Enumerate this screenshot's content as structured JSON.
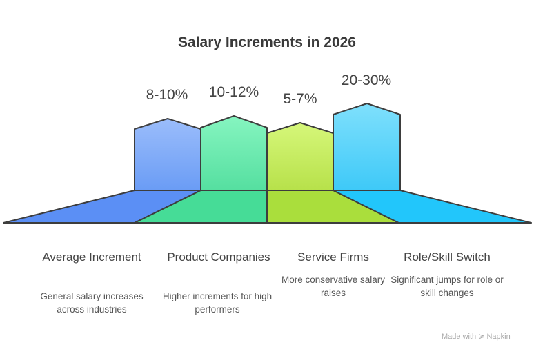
{
  "title": "Salary Increments in 2026",
  "items": [
    {
      "value": "8-10%",
      "label": "Average Increment",
      "desc": "General salary increases across industries",
      "color": "#6f9ff5"
    },
    {
      "value": "10-12%",
      "label": "Product Companies",
      "desc": "Higher increments for high performers",
      "color": "#5fe3a8"
    },
    {
      "value": "5-7%",
      "label": "Service Firms",
      "desc": "More conservative salary raises",
      "color": "#bfe54f"
    },
    {
      "value": "20-30%",
      "label": "Role/Skill Switch",
      "desc": "Significant jumps for role or skill changes",
      "color": "#44ccf7"
    }
  ],
  "branding": "Made with ≽ Napkin"
}
